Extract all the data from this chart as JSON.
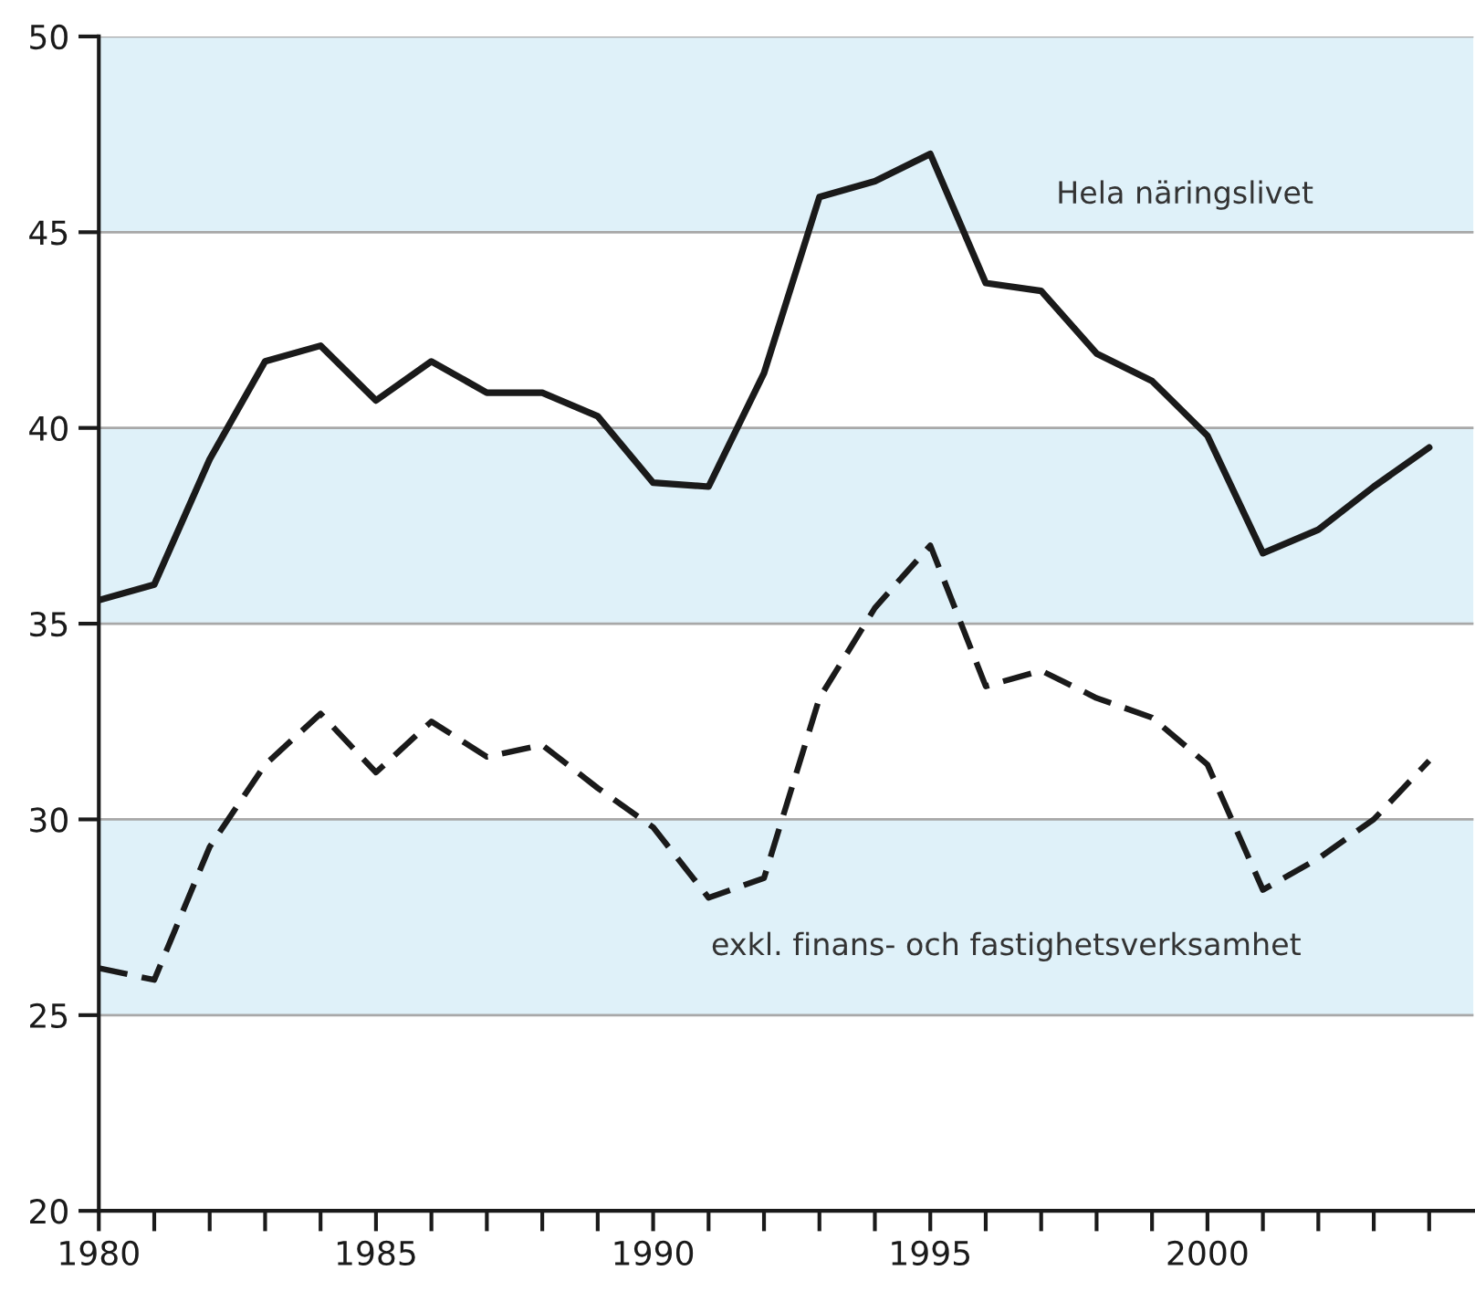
{
  "chart_data": {
    "type": "line",
    "x": [
      1980,
      1981,
      1982,
      1983,
      1984,
      1985,
      1986,
      1987,
      1988,
      1989,
      1990,
      1991,
      1992,
      1993,
      1994,
      1995,
      1996,
      1997,
      1998,
      1999,
      2000,
      2001,
      2002,
      2003,
      2004
    ],
    "series": [
      {
        "name": "Hela näringslivet",
        "color": "#1a1a1a",
        "line_style": "solid",
        "values": [
          35.6,
          36.0,
          39.2,
          41.7,
          42.1,
          40.7,
          41.7,
          40.9,
          40.9,
          40.3,
          38.6,
          38.5,
          41.4,
          45.9,
          46.3,
          47.0,
          43.7,
          43.5,
          41.9,
          41.2,
          39.8,
          36.8,
          37.4,
          38.5,
          39.5
        ]
      },
      {
        "name": "exkl. finans- och fastighetsverksamhet",
        "color": "#1a1a1a",
        "line_style": "dashed",
        "values": [
          26.2,
          25.9,
          29.3,
          31.4,
          32.7,
          31.2,
          32.5,
          31.6,
          31.9,
          30.8,
          29.8,
          28.0,
          28.5,
          33.1,
          35.4,
          37.0,
          33.4,
          33.8,
          33.1,
          32.6,
          31.4,
          28.2,
          29.0,
          30.0,
          31.5
        ]
      }
    ],
    "xlim": [
      1980,
      2004.8
    ],
    "xticks": [
      1980,
      {
        "value": 1981,
        "label": null
      },
      {
        "value": 1982,
        "label": null
      },
      {
        "value": 1983,
        "label": null
      },
      {
        "value": 1984,
        "label": null
      },
      1985,
      {
        "value": 1986,
        "label": null
      },
      {
        "value": 1987,
        "label": null
      },
      {
        "value": 1988,
        "label": null
      },
      {
        "value": 1989,
        "label": null
      },
      1990,
      {
        "value": 1991,
        "label": null
      },
      {
        "value": 1992,
        "label": null
      },
      {
        "value": 1993,
        "label": null
      },
      {
        "value": 1994,
        "label": null
      },
      1995,
      {
        "value": 1996,
        "label": null
      },
      {
        "value": 1997,
        "label": null
      },
      {
        "value": 1998,
        "label": null
      },
      {
        "value": 1999,
        "label": null
      },
      2000,
      {
        "value": 2001,
        "label": null
      },
      {
        "value": 2002,
        "label": null
      },
      {
        "value": 2003,
        "label": null
      },
      {
        "value": 2004,
        "label": null
      }
    ],
    "ylim": [
      20,
      50
    ],
    "yticks": [
      20,
      25,
      30,
      35,
      40,
      45,
      50
    ],
    "grid": "y",
    "bands": [
      {
        "axis": "y",
        "from": 45,
        "to": 50,
        "color": "#dff1f9"
      },
      {
        "axis": "y",
        "from": 35,
        "to": 40,
        "color": "#dff1f9"
      },
      {
        "axis": "y",
        "from": 25,
        "to": 30,
        "color": "#dff1f9"
      }
    ],
    "legend": false
  }
}
